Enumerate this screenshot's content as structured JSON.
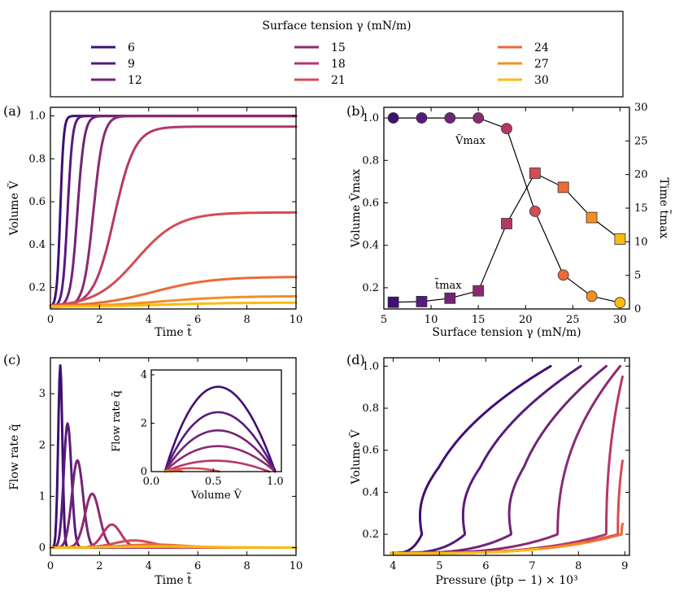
{
  "legend": {
    "title": "Surface tension γ (mN/m)",
    "entries": [
      {
        "label": "6",
        "color": "#3f0f72"
      },
      {
        "label": "9",
        "color": "#581a7e"
      },
      {
        "label": "12",
        "color": "#722474"
      },
      {
        "label": "15",
        "color": "#8c2a70"
      },
      {
        "label": "18",
        "color": "#b5376a"
      },
      {
        "label": "21",
        "color": "#d44c54"
      },
      {
        "label": "24",
        "color": "#ea6a38"
      },
      {
        "label": "27",
        "color": "#f48e22"
      },
      {
        "label": "30",
        "color": "#f9bb10"
      }
    ]
  },
  "chart_data": [
    {
      "panel": "(a)",
      "type": "line",
      "xlabel": "Time t̃",
      "ylabel": "Volume Ṽ",
      "xlim": [
        0,
        10
      ],
      "ylim": [
        0.1,
        1.04
      ],
      "xticks": [
        0,
        2,
        4,
        6,
        8,
        10
      ],
      "yticks": [
        0.2,
        0.4,
        0.6,
        0.8,
        1.0
      ],
      "series": [
        {
          "name": "6",
          "final": 1.0,
          "t_mid": 0.4,
          "width": 0.07
        },
        {
          "name": "9",
          "final": 1.0,
          "t_mid": 0.7,
          "width": 0.1
        },
        {
          "name": "12",
          "final": 1.0,
          "t_mid": 1.1,
          "width": 0.14
        },
        {
          "name": "15",
          "final": 1.0,
          "t_mid": 1.75,
          "width": 0.2
        },
        {
          "name": "18",
          "final": 0.95,
          "t_mid": 2.6,
          "width": 0.42
        },
        {
          "name": "21",
          "final": 0.55,
          "t_mid": 3.5,
          "width": 0.85
        },
        {
          "name": "24",
          "final": 0.25,
          "t_mid": 4.2,
          "width": 1.2
        },
        {
          "name": "27",
          "final": 0.16,
          "t_mid": 4.5,
          "width": 1.4
        },
        {
          "name": "30",
          "final": 0.13,
          "t_mid": 4.6,
          "width": 1.5
        }
      ]
    },
    {
      "panel": "(b)",
      "type": "scatter",
      "xlabel": "Surface tension γ (mN/m)",
      "ylabel": "Volume Ṽmax",
      "ylabel_right": "Time t̃max",
      "xlim": [
        5,
        31
      ],
      "ylim": [
        0.1,
        1.05
      ],
      "ylim_right": [
        0,
        30
      ],
      "xticks": [
        5,
        10,
        15,
        20,
        25,
        30
      ],
      "yticks": [
        0.2,
        0.4,
        0.6,
        0.8,
        1.0
      ],
      "yticks_right": [
        0,
        5,
        10,
        15,
        20,
        25,
        30
      ],
      "x": [
        6,
        9,
        12,
        15,
        18,
        21,
        24,
        27,
        30
      ],
      "vmax": [
        1.0,
        1.0,
        1.0,
        1.0,
        0.95,
        0.56,
        0.26,
        0.16,
        0.13
      ],
      "tmax": [
        1.0,
        1.1,
        1.6,
        2.7,
        12.7,
        20.2,
        18.1,
        13.6,
        10.4
      ],
      "annotation_vmax": "Ṽmax",
      "annotation_tmax": "t̃max"
    },
    {
      "panel": "(c)",
      "type": "line",
      "xlabel": "Time t̃",
      "ylabel": "Flow rate q̃",
      "xlim": [
        0,
        10
      ],
      "ylim": [
        -0.15,
        3.7
      ],
      "xticks": [
        0,
        2,
        4,
        6,
        8,
        10
      ],
      "yticks": [
        0,
        1,
        2,
        3
      ],
      "peaks": [
        3.55,
        2.42,
        1.7,
        1.05,
        0.45,
        0.14,
        0.06,
        0.03,
        0.02
      ],
      "peak_times": [
        0.4,
        0.7,
        1.1,
        1.7,
        2.5,
        3.4,
        4.2,
        4.5,
        4.6
      ],
      "inset": {
        "xlabel": "Volume Ṽ",
        "ylabel": "Flow rate q̃",
        "xlim": [
          0,
          1.05
        ],
        "ylim": [
          0,
          4.2
        ],
        "xticks": [
          0.0,
          0.5,
          1.0
        ],
        "yticks": [
          0,
          2,
          4
        ],
        "arch_peaks": [
          3.5,
          2.45,
          1.7,
          1.05,
          0.45,
          0.14,
          0.06,
          0.03,
          0.02
        ],
        "arch_ends": [
          1.0,
          1.0,
          1.0,
          1.0,
          0.95,
          0.55,
          0.25,
          0.16,
          0.13
        ]
      }
    },
    {
      "panel": "(d)",
      "type": "line",
      "xlabel": "Pressure (p̃tp − 1) × 10³",
      "ylabel": "Volume Ṽ",
      "xlim": [
        3.8,
        9.1
      ],
      "ylim": [
        0.1,
        1.04
      ],
      "xticks": [
        4,
        5,
        6,
        7,
        8,
        9
      ],
      "yticks": [
        0.2,
        0.4,
        0.6,
        0.8,
        1.0
      ],
      "series": [
        {
          "name": "6",
          "p_center": 4.62,
          "p_end": 7.4
        },
        {
          "name": "9",
          "p_center": 5.55,
          "p_end": 8.05
        },
        {
          "name": "12",
          "p_center": 6.55,
          "p_end": 8.6
        },
        {
          "name": "15",
          "p_center": 7.55,
          "p_end": 8.9
        },
        {
          "name": "18",
          "p_center": 8.6,
          "p_end": 8.95
        },
        {
          "name": "21",
          "p_center": 8.85,
          "p_end": 8.95
        },
        {
          "name": "24",
          "p_center": 8.93,
          "p_end": 8.95
        },
        {
          "name": "27",
          "p_center": 8.95,
          "p_end": 8.95
        },
        {
          "name": "30",
          "p_center": 8.96,
          "p_end": 8.96
        }
      ]
    }
  ]
}
